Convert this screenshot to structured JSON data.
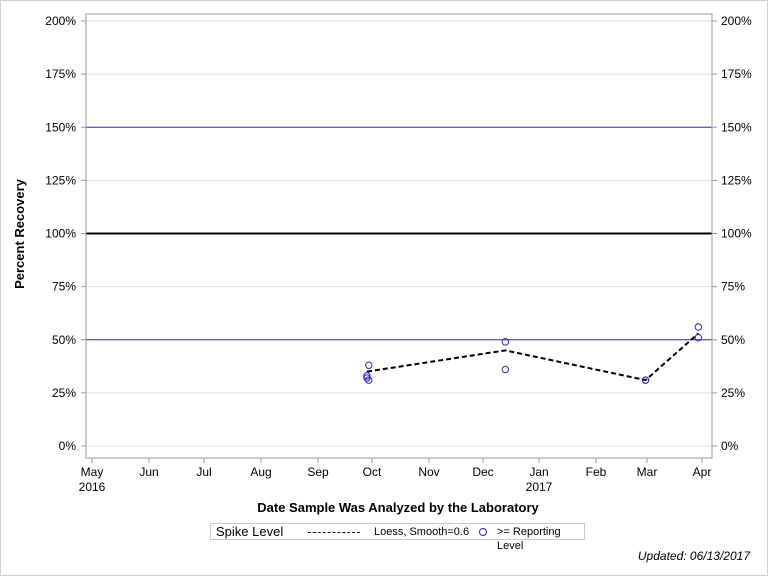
{
  "chart_data": {
    "type": "scatter",
    "title": "",
    "xlabel": "Date Sample Was Analyzed by the Laboratory",
    "ylabel": "Percent Recovery",
    "ylim": [
      0,
      200
    ],
    "y_ticks": [
      "0%",
      "25%",
      "50%",
      "75%",
      "100%",
      "125%",
      "150%",
      "175%",
      "200%"
    ],
    "x_ticks": [
      {
        "label": "May",
        "sub": "2016"
      },
      {
        "label": "Jun",
        "sub": ""
      },
      {
        "label": "Jul",
        "sub": ""
      },
      {
        "label": "Aug",
        "sub": ""
      },
      {
        "label": "Sep",
        "sub": ""
      },
      {
        "label": "Oct",
        "sub": ""
      },
      {
        "label": "Nov",
        "sub": ""
      },
      {
        "label": "Dec",
        "sub": ""
      },
      {
        "label": "Jan",
        "sub": "2017"
      },
      {
        "label": "Feb",
        "sub": ""
      },
      {
        "label": "Mar",
        "sub": ""
      },
      {
        "label": "Apr",
        "sub": ""
      }
    ],
    "reference_lines": [
      {
        "y": 150,
        "color": "#3333aa",
        "width": 1
      },
      {
        "y": 100,
        "color": "#000000",
        "width": 2
      },
      {
        "y": 50,
        "color": "#3333aa",
        "width": 1
      }
    ],
    "grid": true,
    "series": [
      {
        "name": ">= Reporting Level",
        "kind": "scatter",
        "marker": "open-circle",
        "color": "#2b2bb8",
        "points": [
          {
            "x": "2016-09-29",
            "y": 33
          },
          {
            "x": "2016-09-29",
            "y": 32
          },
          {
            "x": "2016-09-30",
            "y": 31
          },
          {
            "x": "2016-09-30",
            "y": 38
          },
          {
            "x": "2016-12-14",
            "y": 49
          },
          {
            "x": "2016-12-14",
            "y": 36
          },
          {
            "x": "2017-03-01",
            "y": 31
          },
          {
            "x": "2017-03-01",
            "y": 31
          },
          {
            "x": "2017-03-30",
            "y": 56
          },
          {
            "x": "2017-03-30",
            "y": 51
          }
        ]
      },
      {
        "name": "Loess, Smooth=0.6",
        "kind": "line",
        "style": "dashed",
        "color": "#000000",
        "points": [
          {
            "x": "2016-09-29",
            "y": 35
          },
          {
            "x": "2016-12-14",
            "y": 45
          },
          {
            "x": "2017-03-01",
            "y": 31
          },
          {
            "x": "2017-03-30",
            "y": 53
          }
        ]
      }
    ],
    "legend": {
      "title": "Spike Level",
      "entries": [
        "Loess, Smooth=0.6",
        ">= Reporting Level"
      ],
      "position": "bottom"
    }
  },
  "footer": {
    "updated": "Updated: 06/13/2017"
  }
}
